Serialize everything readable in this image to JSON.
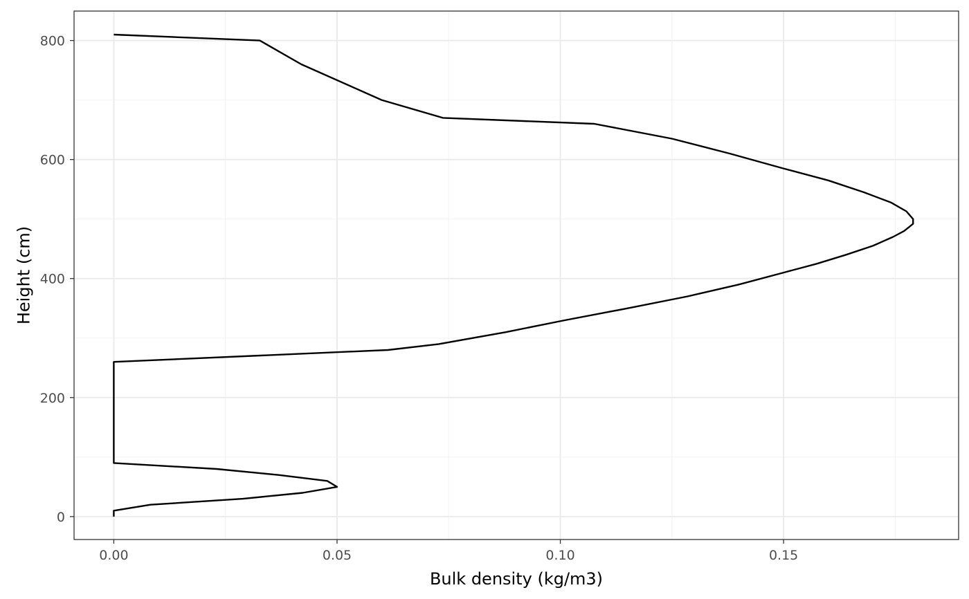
{
  "chart_data": {
    "type": "line",
    "xlabel": "Bulk density (kg/m3)",
    "ylabel": "Height (cm)",
    "xlim": [
      -0.0089,
      0.1892
    ],
    "ylim": [
      -38.5,
      849.5
    ],
    "x_ticks": [
      0.0,
      0.05,
      0.1,
      0.15
    ],
    "x_tick_labels": [
      "0.00",
      "0.05",
      "0.10",
      "0.15"
    ],
    "x_minor_ticks": [
      0.025,
      0.075,
      0.125,
      0.175
    ],
    "y_ticks": [
      0,
      200,
      400,
      600,
      800
    ],
    "y_tick_labels": [
      "0",
      "200",
      "400",
      "600",
      "800"
    ],
    "y_minor_ticks": [
      100,
      300,
      500,
      700
    ],
    "grid": true,
    "line_color": "#000000",
    "series": [
      {
        "points": [
          [
            0.0,
            0
          ],
          [
            0.0,
            10
          ],
          [
            0.0082,
            20
          ],
          [
            0.0289,
            30
          ],
          [
            0.0423,
            40
          ],
          [
            0.05,
            50
          ],
          [
            0.0478,
            60
          ],
          [
            0.0369,
            70
          ],
          [
            0.023,
            80
          ],
          [
            0.0,
            90
          ],
          [
            0.0,
            100
          ],
          [
            0.0,
            150
          ],
          [
            0.0,
            200
          ],
          [
            0.0,
            250
          ],
          [
            0.0,
            260
          ],
          [
            0.0614,
            280
          ],
          [
            0.0728,
            290
          ],
          [
            0.0878,
            310
          ],
          [
            0.101,
            330
          ],
          [
            0.115,
            350
          ],
          [
            0.1285,
            370
          ],
          [
            0.14,
            390
          ],
          [
            0.15,
            410
          ],
          [
            0.1575,
            425
          ],
          [
            0.164,
            440
          ],
          [
            0.17,
            455
          ],
          [
            0.1745,
            470
          ],
          [
            0.177,
            480
          ],
          [
            0.179,
            492
          ],
          [
            0.179,
            500
          ],
          [
            0.1775,
            513
          ],
          [
            0.174,
            528
          ],
          [
            0.168,
            545
          ],
          [
            0.16,
            565
          ],
          [
            0.15,
            585
          ],
          [
            0.138,
            610
          ],
          [
            0.125,
            635
          ],
          [
            0.1076,
            660
          ],
          [
            0.0737,
            670
          ],
          [
            0.06,
            700
          ],
          [
            0.042,
            760
          ],
          [
            0.0327,
            800
          ],
          [
            0.0,
            810
          ]
        ]
      }
    ]
  }
}
